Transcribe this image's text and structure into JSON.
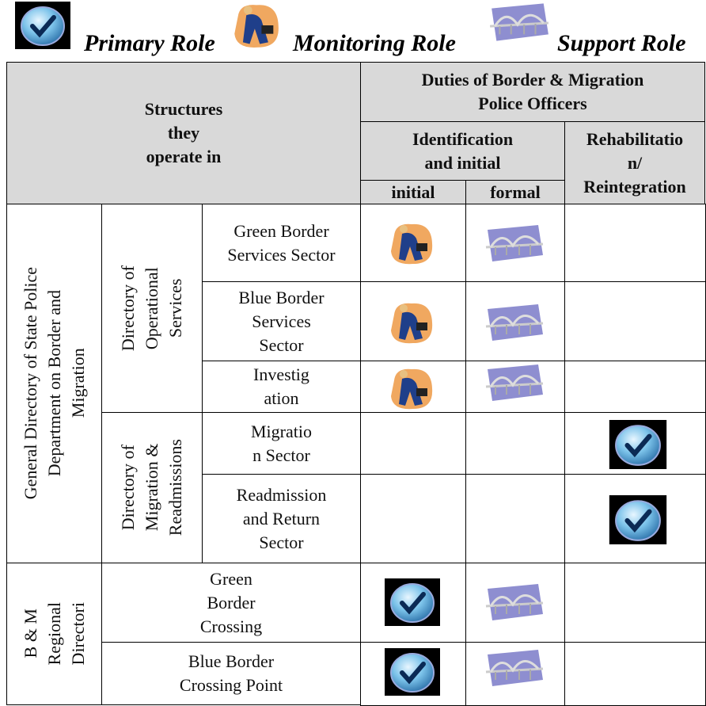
{
  "legend": {
    "primary": "Primary Role",
    "monitoring": "Monitoring Role",
    "support": "Support Role"
  },
  "table": {
    "header": {
      "structures": "Structures\nthey\noperate in",
      "duties": "Duties of Border & Migration\nPolice Officers",
      "identification": "Identification\nand initial",
      "rehabilitation": "Rehabilitatio\nn/\nReintegration",
      "initial": "initial",
      "formal": "formal"
    },
    "groups": [
      "General Directory of State Police\nDepartment on Border and\nMigration",
      "B & M\nRegional\nDirectori"
    ],
    "subgroups": [
      "Directory of\nOperational\nServices",
      "Directory of\nMigration &\nReadmissions"
    ],
    "rows": [
      "Green Border\nServices Sector",
      "Blue Border\nServices\nSector",
      "Investig\nation",
      "Migratio\nn Sector",
      "Readmission\nand Return\nSector",
      "Green\nBorder\nCrossing",
      "Blue Border\nCrossing Point"
    ]
  }
}
